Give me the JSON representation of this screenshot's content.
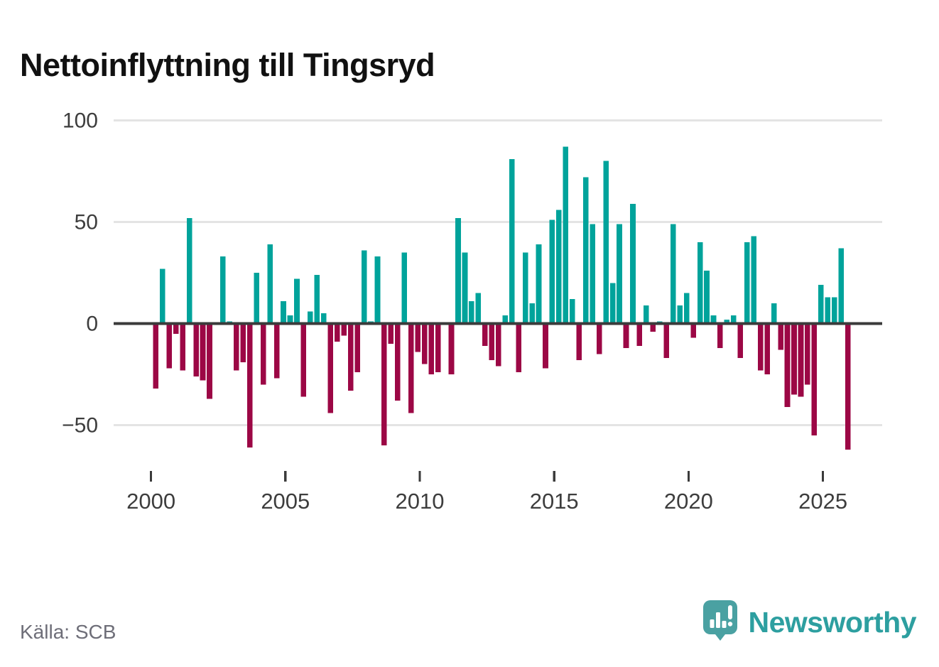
{
  "page": {
    "title": "Nettoinflyttning till Tingsryd",
    "source": "Källa: SCB",
    "logo_text": "Newsworthy"
  },
  "axis": {
    "y_labels": [
      "100",
      "50",
      "0",
      "−50"
    ],
    "x_labels": [
      "2000",
      "2005",
      "2010",
      "2015",
      "2020",
      "2025"
    ]
  },
  "colors": {
    "positive": "#00a39b",
    "negative": "#9c0745",
    "axis_line": "#3b3b3b",
    "gridline": "#e4e4e4",
    "tick_label": "#3d3d3d",
    "title": "#111111",
    "source_text": "#6e6e78",
    "logo_teal": "#4aa1a2",
    "logo_text_color": "#2d9fa0"
  },
  "chart_data": {
    "type": "bar",
    "title": "Nettoinflyttning till Tingsryd",
    "frequency": "quarterly",
    "xlabel": "",
    "ylabel": "",
    "ylim": [
      -70,
      110
    ],
    "yticks": [
      100,
      50,
      0,
      -50
    ],
    "xticks": [
      2000,
      2005,
      2010,
      2015,
      2020,
      2025
    ],
    "grid": true,
    "legend": false,
    "series": [
      {
        "year": 2000,
        "q": [
          -32,
          27,
          -22,
          -5
        ]
      },
      {
        "year": 2001,
        "q": [
          -23,
          52,
          -26,
          -28
        ]
      },
      {
        "year": 2002,
        "q": [
          -37,
          0,
          33,
          1
        ]
      },
      {
        "year": 2003,
        "q": [
          -23,
          -19,
          -61,
          25
        ]
      },
      {
        "year": 2004,
        "q": [
          -30,
          39,
          -27,
          11
        ]
      },
      {
        "year": 2005,
        "q": [
          4,
          22,
          -36,
          6
        ]
      },
      {
        "year": 2006,
        "q": [
          24,
          5,
          -44,
          -9
        ]
      },
      {
        "year": 2007,
        "q": [
          -6,
          -33,
          -24,
          36
        ]
      },
      {
        "year": 2008,
        "q": [
          1,
          33,
          -60,
          -10
        ]
      },
      {
        "year": 2009,
        "q": [
          -38,
          35,
          -44,
          -14
        ]
      },
      {
        "year": 2010,
        "q": [
          -20,
          -25,
          -24,
          0
        ]
      },
      {
        "year": 2011,
        "q": [
          -25,
          52,
          35,
          11
        ]
      },
      {
        "year": 2012,
        "q": [
          15,
          -11,
          -18,
          -21
        ]
      },
      {
        "year": 2013,
        "q": [
          4,
          81,
          -24,
          35
        ]
      },
      {
        "year": 2014,
        "q": [
          10,
          39,
          -22,
          51
        ]
      },
      {
        "year": 2015,
        "q": [
          56,
          87,
          12,
          -18
        ]
      },
      {
        "year": 2016,
        "q": [
          72,
          49,
          -15,
          80
        ]
      },
      {
        "year": 2017,
        "q": [
          20,
          49,
          -12,
          59
        ]
      },
      {
        "year": 2018,
        "q": [
          -11,
          9,
          -4,
          1
        ]
      },
      {
        "year": 2019,
        "q": [
          -17,
          49,
          9,
          15
        ]
      },
      {
        "year": 2020,
        "q": [
          -7,
          40,
          26,
          4
        ]
      },
      {
        "year": 2021,
        "q": [
          -12,
          2,
          4,
          -17
        ]
      },
      {
        "year": 2022,
        "q": [
          40,
          43,
          -23,
          -25
        ]
      },
      {
        "year": 2023,
        "q": [
          10,
          -13,
          -41,
          -35
        ]
      },
      {
        "year": 2024,
        "q": [
          -36,
          -30,
          -55,
          19
        ]
      },
      {
        "year": 2025,
        "q": [
          13,
          13,
          37,
          -62
        ]
      }
    ]
  }
}
